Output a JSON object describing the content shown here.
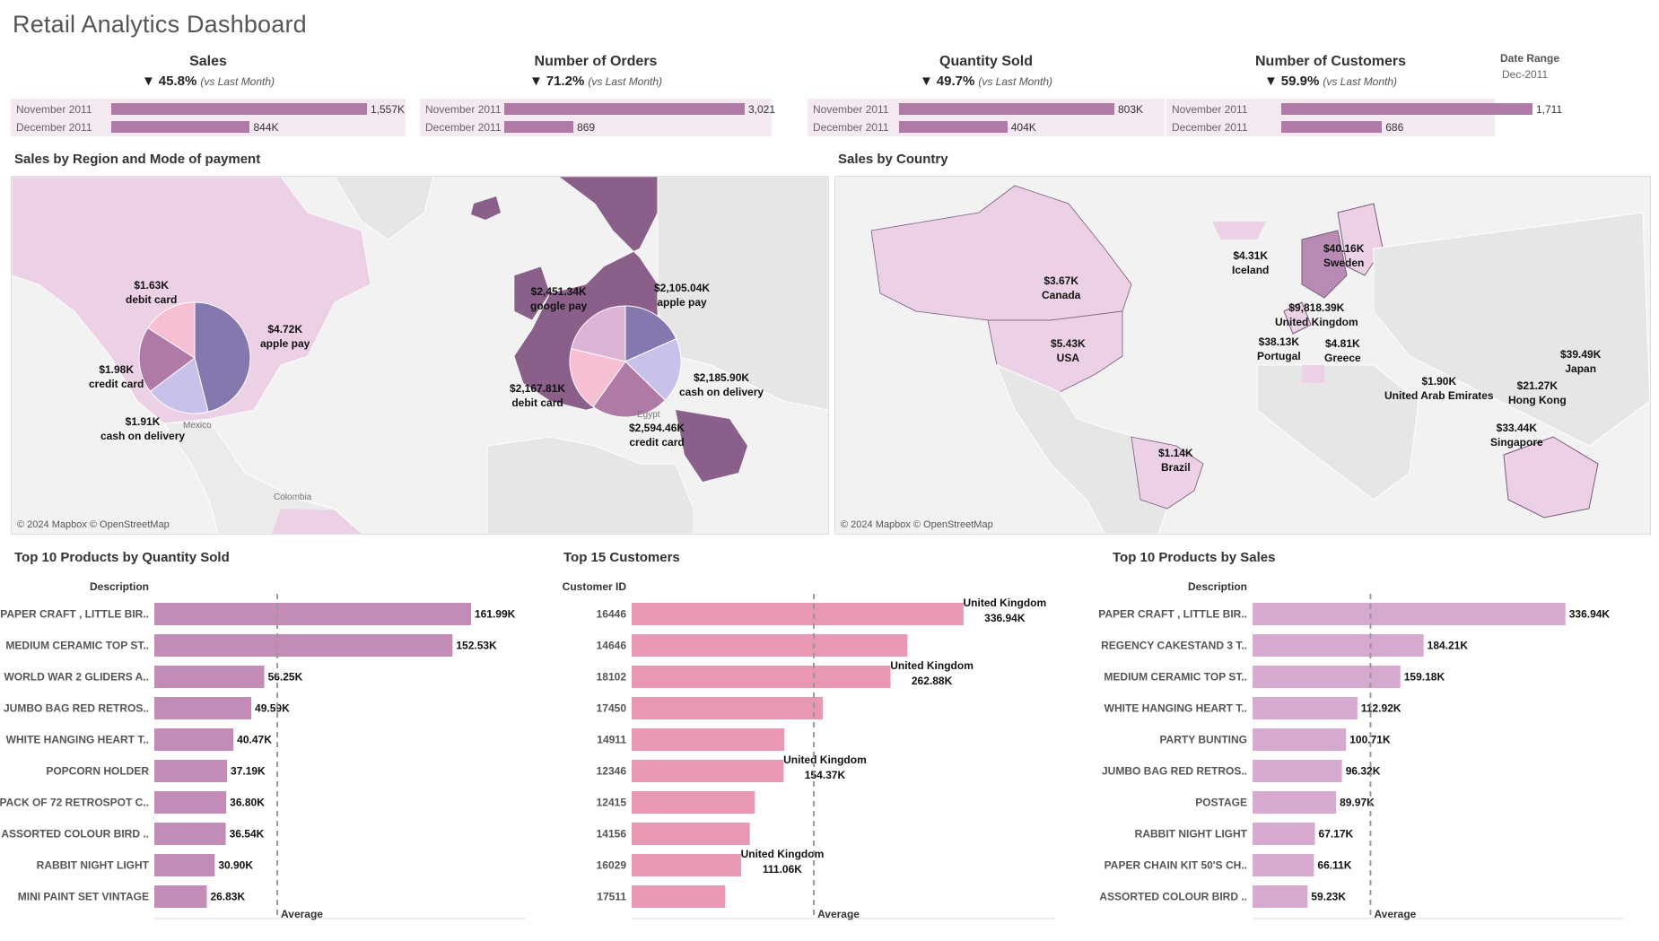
{
  "title": "Retail Analytics Dashboard",
  "colors": {
    "kpi_bar": "#b07aa6",
    "kpi_bg": "#f4e9f1",
    "qty_bar": "#c28cb6",
    "cust_bar": "#e898b4",
    "sales_bar": "#d6a9cf"
  },
  "kpis": [
    {
      "name": "Sales",
      "arrow": "▼",
      "delta": "45.8%",
      "vs": "(vs Last Month)",
      "rows": [
        {
          "label": "November 2011",
          "value": 1557,
          "display": "1,557K"
        },
        {
          "label": "December 2011",
          "value": 844,
          "display": "844K"
        }
      ]
    },
    {
      "name": "Number of Orders",
      "arrow": "▼",
      "delta": "71.2%",
      "vs": "(vs Last Month)",
      "rows": [
        {
          "label": "November 2011",
          "value": 3021,
          "display": "3,021"
        },
        {
          "label": "December 2011",
          "value": 869,
          "display": "869"
        }
      ]
    },
    {
      "name": "Quantity Sold",
      "arrow": "▼",
      "delta": "49.7%",
      "vs": "(vs Last Month)",
      "rows": [
        {
          "label": "November 2011",
          "value": 803,
          "display": "803K"
        },
        {
          "label": "December 2011",
          "value": 404,
          "display": "404K"
        }
      ]
    },
    {
      "name": "Number of Customers",
      "arrow": "▼",
      "delta": "59.9%",
      "vs": "(vs Last Month)",
      "rows": [
        {
          "label": "November 2011",
          "value": 1711,
          "display": "1,711"
        },
        {
          "label": "December 2011",
          "value": 686,
          "display": "686"
        }
      ]
    }
  ],
  "date_range": {
    "label": "Date Range",
    "value": "Dec-2011"
  },
  "region_map": {
    "title": "Sales by Region and Mode of payment",
    "copyright": "© 2024 Mapbox © OpenStreetMap",
    "place_names": [
      "Mexico",
      "Colombia",
      "Egypt"
    ],
    "americas": {
      "slices": [
        {
          "label": "apple pay",
          "value": 4.72,
          "display": "$4.72K",
          "color": "#8478ae"
        },
        {
          "label": "cash on delivery",
          "value": 1.91,
          "display": "$1.91K",
          "color": "#c7c1ec"
        },
        {
          "label": "credit card",
          "value": 1.98,
          "display": "$1.98K",
          "color": "#b07aa6"
        },
        {
          "label": "debit card",
          "value": 1.63,
          "display": "$1.63K",
          "color": "#f7bfd3"
        }
      ]
    },
    "europe": {
      "slices": [
        {
          "label": "apple pay",
          "value": 2105.04,
          "display": "$2,105.04K",
          "color": "#8478ae"
        },
        {
          "label": "cash on delivery",
          "value": 2185.9,
          "display": "$2,185.90K",
          "color": "#c7c1ec"
        },
        {
          "label": "credit card",
          "value": 2594.46,
          "display": "$2,594.46K",
          "color": "#b07aa6"
        },
        {
          "label": "debit card",
          "value": 2167.81,
          "display": "$2,167.81K",
          "color": "#f7bfd3"
        },
        {
          "label": "google pay",
          "value": 2451.34,
          "display": "$2,451.34K",
          "color": "#dcb4d6"
        }
      ]
    }
  },
  "country_map": {
    "title": "Sales by Country",
    "copyright": "© 2024 Mapbox © OpenStreetMap",
    "labels": [
      {
        "value": "$3.67K",
        "name": "Canada"
      },
      {
        "value": "$5.43K",
        "name": "USA"
      },
      {
        "value": "$1.14K",
        "name": "Brazil"
      },
      {
        "value": "$4.31K",
        "name": "Iceland"
      },
      {
        "value": "$40.16K",
        "name": "Sweden"
      },
      {
        "value": "$9,818.39K",
        "name": "United Kingdom"
      },
      {
        "value": "$38.13K",
        "name": "Portugal"
      },
      {
        "value": "$4.81K",
        "name": "Greece"
      },
      {
        "value": "$1.90K",
        "name": "United Arab Emirates"
      },
      {
        "value": "$39.49K",
        "name": "Japan"
      },
      {
        "value": "$21.27K",
        "name": "Hong Kong"
      },
      {
        "value": "$33.44K",
        "name": "Singapore"
      }
    ]
  },
  "chart_data": [
    {
      "type": "bar",
      "title": "Top 10 Products by Quantity Sold",
      "category_header": "Description",
      "categories": [
        "PAPER CRAFT , LITTLE BIR..",
        "MEDIUM CERAMIC TOP ST..",
        "WORLD WAR 2 GLIDERS A..",
        "JUMBO BAG RED RETROS..",
        "WHITE HANGING HEART T..",
        "POPCORN HOLDER",
        "PACK OF 72 RETROSPOT C..",
        "ASSORTED COLOUR BIRD ..",
        "RABBIT NIGHT LIGHT",
        "MINI PAINT SET VINTAGE"
      ],
      "values": [
        161990,
        152530,
        56250,
        49590,
        40470,
        37190,
        36800,
        36540,
        30900,
        26830
      ],
      "value_labels": [
        "161.99K",
        "152.53K",
        "56.25K",
        "49.59K",
        "40.47K",
        "37.19K",
        "36.80K",
        "36.54K",
        "30.90K",
        "26.83K"
      ],
      "xlim": [
        0,
        190000
      ],
      "xticks": [
        0,
        20000,
        40000,
        60000,
        80000,
        100000,
        120000,
        140000,
        160000,
        180000
      ],
      "xtick_labels": [
        "0K",
        "20K",
        "40K",
        "60K",
        "80K",
        "100K",
        "120K",
        "140K",
        "160K",
        "180K"
      ],
      "reference_line": {
        "label": "Average",
        "value": 62900
      },
      "color": "#c28cb6"
    },
    {
      "type": "bar",
      "title": "Top 15 Customers",
      "category_header": "Customer ID",
      "categories": [
        "16446",
        "14646",
        "18102",
        "17450",
        "14911",
        "12346",
        "12415",
        "14156",
        "16029",
        "17511"
      ],
      "values": [
        336940,
        280000,
        262880,
        194000,
        155000,
        154370,
        125000,
        120000,
        111060,
        95000
      ],
      "value_labels": [
        "United Kingdom\n336.94K",
        "",
        "United Kingdom\n262.88K",
        "",
        "",
        "United Kingdom\n154.37K",
        "",
        "",
        "United Kingdom\n111.06K",
        ""
      ],
      "xlim": [
        0,
        430000
      ],
      "xticks": [
        0,
        50000,
        100000,
        150000,
        200000,
        250000,
        300000,
        350000,
        400000
      ],
      "xtick_labels": [
        "0K",
        "50K",
        "100K",
        "150K",
        "200K",
        "250K",
        "300K",
        "350K",
        "400K"
      ],
      "reference_line": {
        "label": "Average",
        "value": 185000
      },
      "color": "#e898b4"
    },
    {
      "type": "bar",
      "title": "Top 10 Products by Sales",
      "category_header": "Description",
      "categories": [
        "PAPER CRAFT , LITTLE BIR..",
        "REGENCY CAKESTAND 3 T..",
        "MEDIUM CERAMIC TOP ST..",
        "WHITE HANGING HEART T..",
        "PARTY BUNTING",
        "JUMBO BAG RED RETROS..",
        "POSTAGE",
        "RABBIT NIGHT LIGHT",
        "PAPER CHAIN KIT 50'S CH..",
        "ASSORTED COLOUR BIRD .."
      ],
      "values": [
        336940,
        184210,
        159180,
        112920,
        100710,
        96320,
        89970,
        67170,
        66110,
        59230
      ],
      "value_labels": [
        "336.94K",
        "184.21K",
        "159.18K",
        "112.92K",
        "100.71K",
        "96.32K",
        "89.97K",
        "67.17K",
        "66.11K",
        "59.23K"
      ],
      "xlim": [
        0,
        400000
      ],
      "xticks": [
        0,
        50000,
        100000,
        150000,
        200000,
        250000,
        300000,
        350000,
        400000
      ],
      "xtick_labels": [
        "0K",
        "50K",
        "100K",
        "150K",
        "200K",
        "250K",
        "300K",
        "350K",
        "400K"
      ],
      "reference_line": {
        "label": "Average",
        "value": 127000
      },
      "color": "#d6a9cf"
    }
  ]
}
